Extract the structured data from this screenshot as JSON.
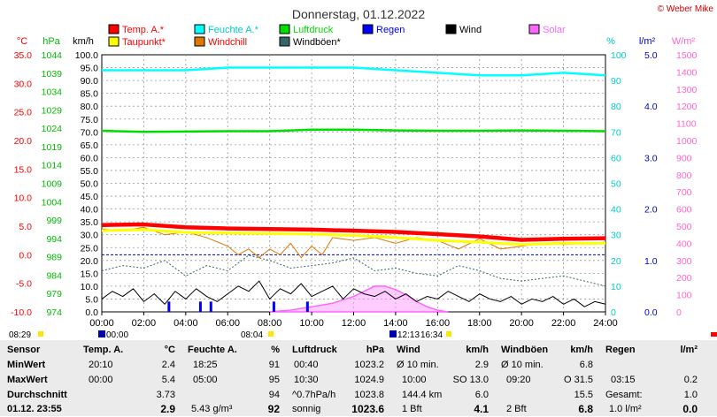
{
  "title": "Donnerstag, 01.12.2022",
  "credit": "© Weber Mike",
  "legend": [
    {
      "label": "Temp. A.*",
      "color": "#ff0000"
    },
    {
      "label": "Feuchte A.*",
      "color": "#00ffff"
    },
    {
      "label": "Luftdruck",
      "color": "#00dd00"
    },
    {
      "label": "Regen",
      "color": "#0000ff"
    },
    {
      "label": "Wind",
      "color": "#000000"
    },
    {
      "label": "Solar",
      "color": "#ff66ff"
    },
    {
      "label": "Taupunkt*",
      "color": "#ffff00"
    },
    {
      "label": "Windchill",
      "color": "#e07800"
    },
    {
      "label": "Windböen*",
      "color": "#336666"
    }
  ],
  "axis_units": {
    "temp": "°C",
    "pressure": "hPa",
    "wind": "km/h",
    "humidity": "%",
    "rain": "l/m²",
    "solar": "W/m²"
  },
  "colors": {
    "temp_axis": "#ff0000",
    "pressure_axis": "#00bb00",
    "humidity_axis": "#00cccc",
    "rain_axis": "#0000cc",
    "solar_axis": "#ff66cc",
    "panel_bg": "#ebebeb"
  },
  "sun": {
    "sunrise": "08:04",
    "sunset": "16:34",
    "noon": "12:13",
    "daylength": "08:29"
  },
  "chart_data": {
    "type": "line",
    "title": "Donnerstag, 01.12.2022",
    "x_ticks": [
      "00:00",
      "02:00",
      "04:00",
      "06:00",
      "08:00",
      "10:00",
      "12:00",
      "14:00",
      "16:00",
      "18:00",
      "20:00",
      "22:00",
      "24:00"
    ],
    "xlim": [
      0,
      24
    ],
    "axes": {
      "temp_c": {
        "ticks": [
          "35.0",
          "30.0",
          "25.0",
          "20.0",
          "15.0",
          "10.0",
          "5.0",
          "0.0",
          "-5.0",
          "-10.0"
        ],
        "ylim": [
          -10,
          35
        ]
      },
      "pressure_hpa": {
        "ticks": [
          "1044",
          "1039",
          "1034",
          "1029",
          "1024",
          "1019",
          "1014",
          "1009",
          "1004",
          "999",
          "994",
          "989",
          "984",
          "979",
          "974"
        ],
        "ylim": [
          974,
          1044
        ]
      },
      "wind_kmh": {
        "ticks": [
          "100.0",
          "95.0",
          "90.0",
          "85.0",
          "80.0",
          "75.0",
          "70.0",
          "65.0",
          "60.0",
          "55.0",
          "50.0",
          "45.0",
          "40.0",
          "35.0",
          "30.0",
          "25.0",
          "20.0",
          "15.0",
          "10.0",
          "5.0",
          "0.0"
        ],
        "ylim": [
          0,
          100
        ]
      },
      "humidity_pct": {
        "ticks": [
          "100",
          "90",
          "80",
          "70",
          "60",
          "50",
          "40",
          "30",
          "20",
          "10",
          "0"
        ],
        "ylim": [
          0,
          100
        ]
      },
      "rain_lm2": {
        "ticks": [
          "5.0",
          "4.0",
          "3.0",
          "2.0",
          "1.0",
          "0.0"
        ],
        "ylim": [
          0,
          5
        ]
      },
      "solar_wm2": {
        "ticks": [
          "1500",
          "1400",
          "1300",
          "1200",
          "1100",
          "1000",
          "900",
          "800",
          "700",
          "600",
          "500",
          "400",
          "300",
          "200",
          "100",
          "0"
        ],
        "ylim": [
          0,
          1500
        ]
      }
    },
    "series": [
      {
        "name": "Temp. A.*",
        "axis": "temp_c",
        "x": [
          0,
          2,
          4,
          6,
          8,
          10,
          12,
          14,
          16,
          18,
          20,
          22,
          24
        ],
        "y": [
          5.2,
          5.3,
          4.8,
          4.6,
          4.5,
          4.4,
          4.2,
          4.0,
          3.6,
          3.2,
          2.6,
          2.8,
          2.9
        ]
      },
      {
        "name": "Feuchte A.*",
        "axis": "humidity_pct",
        "x": [
          0,
          2,
          4,
          6,
          8,
          10,
          12,
          14,
          16,
          18,
          20,
          22,
          24
        ],
        "y": [
          94,
          94,
          94,
          95,
          95,
          95,
          95,
          94,
          93,
          92,
          92,
          93,
          92
        ]
      },
      {
        "name": "Luftdruck",
        "axis": "pressure_hpa",
        "x": [
          0,
          2,
          4,
          6,
          8,
          10,
          12,
          14,
          16,
          18,
          20,
          22,
          24
        ],
        "y": [
          1023.3,
          1023.0,
          1023.1,
          1023.2,
          1023.2,
          1023.6,
          1023.6,
          1023.4,
          1023.3,
          1023.3,
          1023.4,
          1023.3,
          1023.2
        ]
      },
      {
        "name": "Taupunkt*",
        "axis": "temp_c",
        "x": [
          0,
          2,
          4,
          6,
          8,
          10,
          12,
          14,
          16,
          18,
          20,
          22,
          24
        ],
        "y": [
          4.2,
          4.4,
          3.9,
          3.8,
          3.7,
          3.6,
          3.4,
          3.0,
          2.5,
          2.2,
          1.8,
          2.0,
          2.0
        ]
      },
      {
        "name": "Windchill",
        "axis": "temp_c",
        "x": [
          0,
          1,
          2,
          3,
          4,
          5,
          6,
          6.5,
          7,
          7.5,
          8,
          8.5,
          9,
          9.5,
          10,
          10.5,
          11,
          12,
          13,
          14,
          15,
          16,
          17,
          18,
          19,
          20,
          21,
          22,
          23,
          24
        ],
        "y": [
          4.5,
          4.2,
          4.8,
          3.5,
          4.0,
          3.0,
          1.5,
          0.0,
          1.0,
          -0.5,
          1.0,
          0.0,
          2.0,
          -0.5,
          1.5,
          0.0,
          3.0,
          2.5,
          3.0,
          2.0,
          3.0,
          2.5,
          1.0,
          2.8,
          1.0,
          1.5,
          2.0,
          1.8,
          2.0,
          2.2
        ]
      },
      {
        "name": "Windböen*",
        "axis": "wind_kmh",
        "x": [
          0,
          1,
          2,
          3,
          4,
          5,
          6,
          7,
          8,
          9,
          10,
          11,
          12,
          13,
          14,
          15,
          16,
          17,
          18,
          19,
          20,
          21,
          22,
          23,
          24
        ],
        "y": [
          16,
          18,
          17,
          20,
          14,
          18,
          16,
          22,
          20,
          17,
          18,
          19,
          21,
          16,
          17,
          15,
          14,
          18,
          16,
          13,
          12,
          13,
          14,
          12,
          10
        ]
      },
      {
        "name": "Wind",
        "axis": "wind_kmh",
        "x": [
          0,
          0.5,
          1,
          1.5,
          2,
          2.5,
          3,
          3.5,
          4,
          4.5,
          5,
          5.5,
          6,
          6.5,
          7,
          7.5,
          8,
          8.5,
          9,
          9.5,
          10,
          10.5,
          11,
          11.5,
          12,
          12.5,
          13,
          13.5,
          14,
          14.5,
          15,
          15.5,
          16,
          16.5,
          17,
          17.5,
          18,
          18.5,
          19,
          19.5,
          20,
          20.5,
          21,
          21.5,
          22,
          22.5,
          23,
          23.5,
          24
        ],
        "y": [
          5,
          8,
          6,
          9,
          4,
          7,
          3,
          8,
          5,
          9,
          6,
          4,
          7,
          10,
          8,
          12,
          5,
          9,
          7,
          11,
          6,
          8,
          10,
          5,
          9,
          7,
          6,
          8,
          5,
          7,
          4,
          6,
          5,
          8,
          6,
          4,
          7,
          5,
          4,
          6,
          3,
          5,
          4,
          6,
          3,
          5,
          2,
          4,
          3
        ]
      },
      {
        "name": "Solar",
        "axis": "solar_wm2",
        "x": [
          8.0,
          8.5,
          9,
          9.5,
          10,
          10.5,
          11,
          11.5,
          12,
          12.5,
          13,
          13.5,
          14,
          14.5,
          15,
          15.5,
          16,
          16.5
        ],
        "y": [
          0,
          5,
          10,
          20,
          30,
          40,
          50,
          70,
          90,
          120,
          150,
          150,
          130,
          100,
          60,
          30,
          10,
          0
        ]
      },
      {
        "name": "Regen",
        "axis": "rain_lm2",
        "x": [
          3.2,
          4.7,
          5.2,
          8.2,
          9.8
        ],
        "y": [
          0.2,
          0.2,
          0.2,
          0.2,
          0.2
        ]
      }
    ]
  },
  "stats": {
    "sensor": {
      "header": "Sensor",
      "rows": [
        "MinWert",
        "MaxWert",
        "Durchschnitt"
      ],
      "footer": "01.12. 23:55"
    },
    "temp": {
      "header": "Temp. A.",
      "unit": "°C",
      "min_time": "20:10",
      "min_val": "2.4",
      "max_time": "00:00",
      "max_val": "5.4",
      "avg": "3.73",
      "current": "2.9"
    },
    "humidity": {
      "header": "Feuchte A.",
      "unit": "%",
      "min_time": "18:25",
      "min_val": "91",
      "max_time": "05:00",
      "max_val": "95",
      "avg": "94",
      "abs_humidity": "5.43 g/m³",
      "current": "92"
    },
    "pressure": {
      "header": "Luftdruck",
      "unit": "hPa",
      "min_time": "00:40",
      "min_val": "1023.2",
      "max_time": "10:30",
      "max_val": "1024.9",
      "trend": "^0.7hPa/h",
      "avg": "1023.8",
      "forecast": "sonnig",
      "current": "1023.6"
    },
    "wind": {
      "header": "Wind",
      "unit": "km/h",
      "r1_label": "Ø 10 min.",
      "r1_val": "2.9",
      "r2_time": "10:00",
      "r2_val": "SO 13.0",
      "r3_label": "144.4 km",
      "r3_val": "6.0",
      "bft": "1 Bft",
      "current": "4.1"
    },
    "gusts": {
      "header": "Windböen",
      "unit": "km/h",
      "r1_label": "Ø 10 min.",
      "r1_val": "6.8",
      "r2_time": "09:20",
      "r2_val": "O 31.5",
      "r3_val": "15.5",
      "bft": "2 Bft",
      "current": "6.8"
    },
    "rain": {
      "header": "Regen",
      "unit": "l/m²",
      "r2_time": "03:15",
      "r2_val": "0.2",
      "r3_label": "Gesamt:",
      "r3_val": "1.0",
      "footer_label": "1.0 l/m²",
      "current": "0.0"
    }
  }
}
